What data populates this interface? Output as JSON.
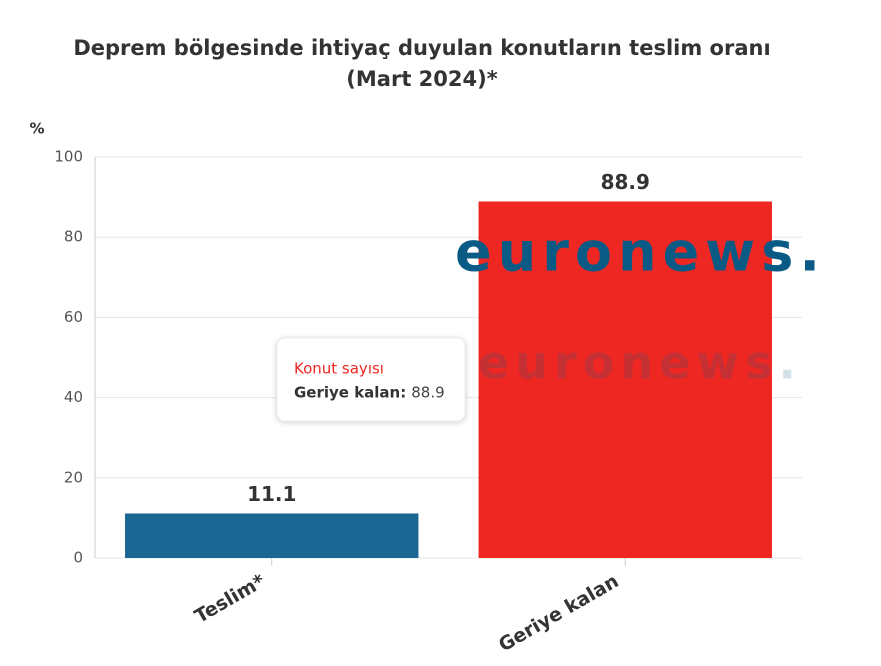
{
  "chart_data": {
    "type": "bar",
    "title": [
      "Deprem bölgesinde ihtiyaç duyulan konutların teslim oranı",
      "(Mart 2024)*"
    ],
    "y_label": "%",
    "categories": [
      "Teslim*",
      "Geriye kalan"
    ],
    "values": [
      11.1,
      88.9
    ],
    "colors": [
      "#1b6794",
      "#ee2722"
    ],
    "ylim": [
      0,
      100
    ],
    "yticks": [
      0,
      20,
      40,
      60,
      80,
      100
    ],
    "grid": true,
    "tooltip": {
      "title": "Konut sayısı",
      "label": "Geriye kalan:"
    },
    "watermark": "euronews."
  }
}
